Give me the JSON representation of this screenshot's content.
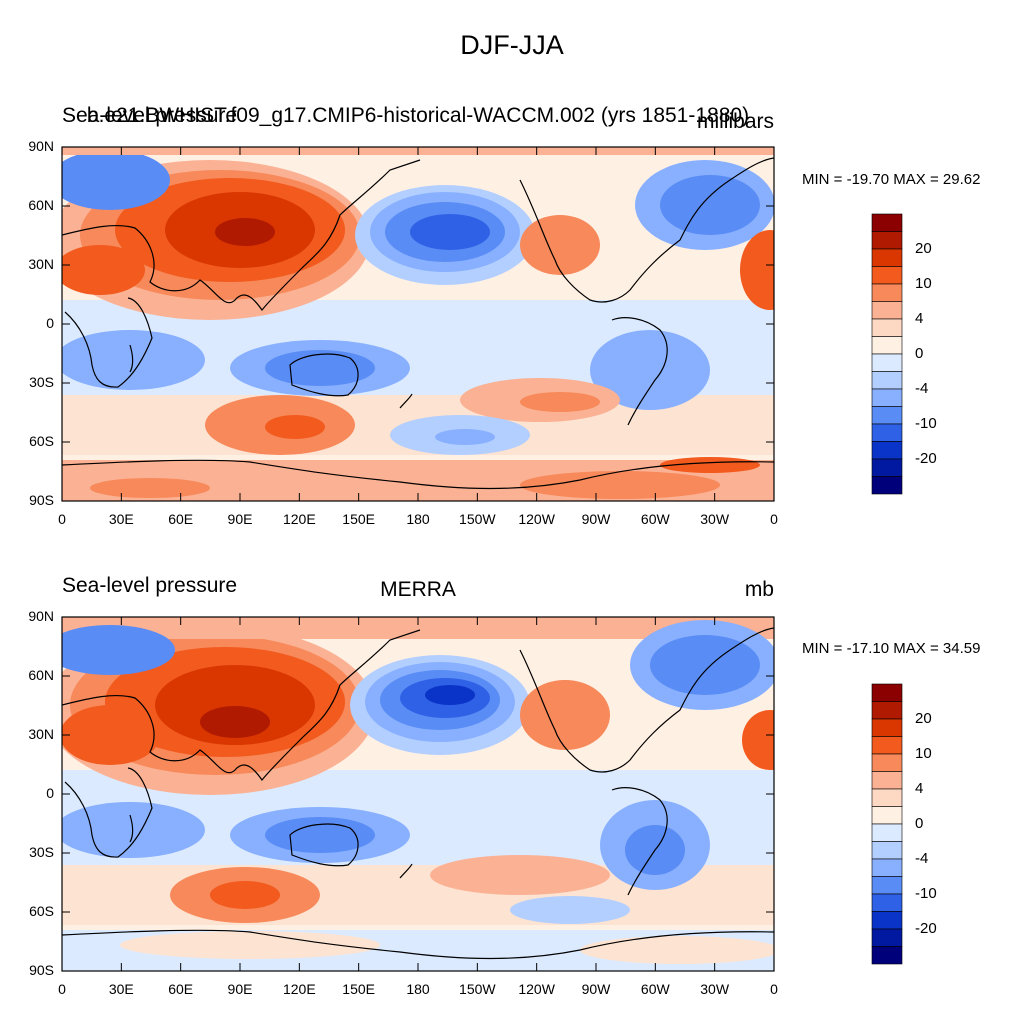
{
  "figure": {
    "title": "DJF-JJA",
    "panels": [
      {
        "left_title": "Sea-level pressure",
        "center_title": "b.e21.BWHIST.f09_g17.CMIP6-historical-WACCM.002 (yrs 1851-1880)",
        "units": "millibars",
        "min_max": "MIN = -19.70 MAX =  29.62"
      },
      {
        "left_title": "Sea-level pressure",
        "center_title": "MERRA",
        "units": "mb",
        "min_max": "MIN = -17.10 MAX =  34.59"
      }
    ],
    "lat_labels": [
      "90N",
      "60N",
      "30N",
      "0",
      "30S",
      "60S",
      "90S"
    ],
    "lon_labels": [
      "0",
      "30E",
      "60E",
      "90E",
      "120E",
      "150E",
      "180",
      "150W",
      "120W",
      "90W",
      "60W",
      "30W",
      "0"
    ],
    "colorbar_labels": [
      "20",
      "10",
      "4",
      "0",
      "-4",
      "-10",
      "-20"
    ],
    "colorbar_colors": [
      "#8b0000",
      "#b01a00",
      "#d93600",
      "#f25a1e",
      "#f7895a",
      "#fbb193",
      "#fdd8c2",
      "#fff0e4",
      "#dbeaff",
      "#b3cfff",
      "#88b0ff",
      "#5a8cf5",
      "#2f61e6",
      "#0a34c8",
      "#0019a0",
      "#00007a"
    ]
  }
}
